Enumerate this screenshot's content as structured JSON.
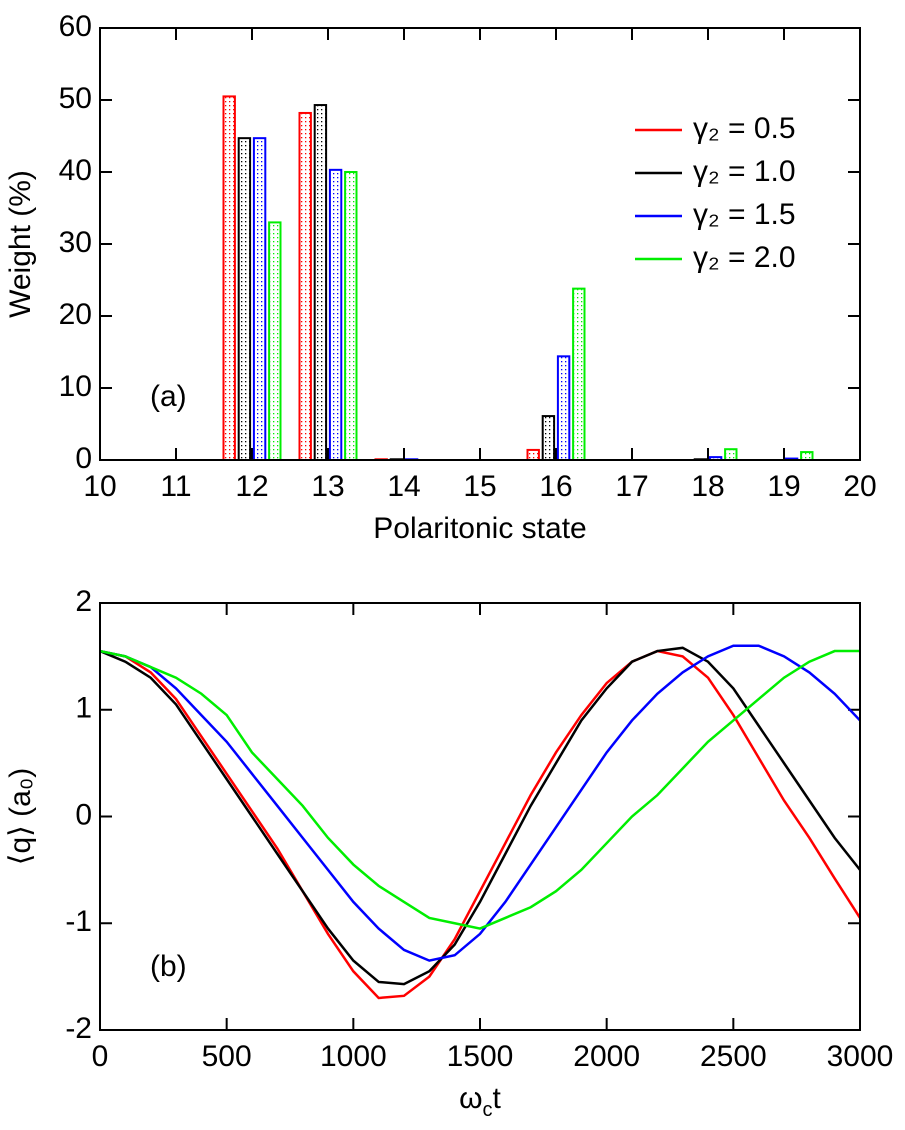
{
  "chart_data": [
    {
      "type": "bar",
      "x_label": "Polaritonic state",
      "y_label": "Weight (%)",
      "annotation": "(a)",
      "x": [
        12,
        13,
        14,
        16,
        18,
        19
      ],
      "xlim": [
        10,
        20
      ],
      "xticks": [
        10,
        11,
        12,
        13,
        14,
        15,
        16,
        17,
        18,
        19,
        20
      ],
      "ylim": [
        0,
        60
      ],
      "yticks": [
        0,
        10,
        20,
        30,
        40,
        50,
        60
      ],
      "legend": "upper right",
      "series": [
        {
          "name": "γ₂ = 0.5",
          "color": "#ff0000",
          "values": [
            50.5,
            48.2,
            0.1,
            1.4,
            0,
            0
          ]
        },
        {
          "name": "γ₂ = 1.0",
          "color": "#000000",
          "values": [
            44.7,
            49.3,
            0.1,
            6.1,
            0.1,
            0
          ]
        },
        {
          "name": "γ₂ = 1.5",
          "color": "#0000ff",
          "values": [
            44.7,
            40.3,
            0.1,
            14.4,
            0.4,
            0.2
          ]
        },
        {
          "name": "γ₂ = 2.0",
          "color": "#00ee00",
          "values": [
            33,
            40,
            0,
            23.8,
            1.5,
            1.1
          ]
        }
      ]
    },
    {
      "type": "line",
      "x_label": [
        "ω",
        "c",
        "t"
      ],
      "y_label": "⟨q⟩ (a₀)",
      "annotation": "(b)",
      "x": [
        0,
        100,
        200,
        300,
        400,
        500,
        600,
        700,
        800,
        900,
        1000,
        1100,
        1200,
        1300,
        1400,
        1500,
        1600,
        1700,
        1800,
        1900,
        2000,
        2100,
        2200,
        2300,
        2400,
        2500,
        2600,
        2700,
        2800,
        2900,
        3000
      ],
      "xlim": [
        0,
        3000
      ],
      "xticks": [
        0,
        500,
        1000,
        1500,
        2000,
        2500,
        3000
      ],
      "ylim": [
        -2,
        2
      ],
      "yticks": [
        -2,
        -1,
        0,
        1,
        2
      ],
      "series": [
        {
          "color": "#ff0000",
          "values": [
            1.55,
            1.5,
            1.35,
            1.1,
            0.75,
            0.4,
            0.05,
            -0.3,
            -0.7,
            -1.1,
            -1.45,
            -1.7,
            -1.68,
            -1.5,
            -1.15,
            -0.7,
            -0.25,
            0.2,
            0.6,
            0.95,
            1.25,
            1.45,
            1.55,
            1.5,
            1.3,
            0.95,
            0.55,
            0.15,
            -0.2,
            -0.58,
            -0.95
          ]
        },
        {
          "color": "#000000",
          "values": [
            1.55,
            1.45,
            1.3,
            1.05,
            0.7,
            0.35,
            0.0,
            -0.35,
            -0.7,
            -1.05,
            -1.35,
            -1.55,
            -1.57,
            -1.45,
            -1.2,
            -0.8,
            -0.35,
            0.1,
            0.5,
            0.9,
            1.2,
            1.45,
            1.55,
            1.58,
            1.45,
            1.2,
            0.85,
            0.5,
            0.15,
            -0.2,
            -0.5
          ]
        },
        {
          "color": "#0000ff",
          "values": [
            1.55,
            1.5,
            1.4,
            1.2,
            0.95,
            0.7,
            0.4,
            0.1,
            -0.2,
            -0.5,
            -0.8,
            -1.05,
            -1.25,
            -1.35,
            -1.3,
            -1.1,
            -0.8,
            -0.45,
            -0.1,
            0.25,
            0.6,
            0.9,
            1.15,
            1.35,
            1.5,
            1.6,
            1.6,
            1.5,
            1.35,
            1.15,
            0.9
          ]
        },
        {
          "color": "#00ee00",
          "values": [
            1.55,
            1.5,
            1.4,
            1.3,
            1.15,
            0.95,
            0.6,
            0.35,
            0.1,
            -0.2,
            -0.45,
            -0.65,
            -0.8,
            -0.95,
            -1.0,
            -1.05,
            -0.95,
            -0.85,
            -0.7,
            -0.5,
            -0.25,
            0.0,
            0.2,
            0.45,
            0.7,
            0.9,
            1.1,
            1.3,
            1.45,
            1.55,
            1.55
          ]
        }
      ]
    }
  ]
}
